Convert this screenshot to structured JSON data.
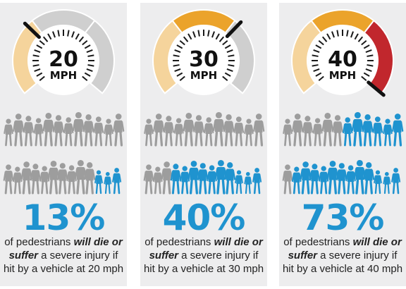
{
  "colors": {
    "panel_bg": "#ededee",
    "dial_tan": "#f5d49c",
    "dial_orange": "#eba32b",
    "dial_red": "#c1272d",
    "dial_grey": "#cfcfcf",
    "people_grey": "#9d9d9d",
    "people_blue": "#1f93cf",
    "percent_blue": "#1f93cf"
  },
  "panels": [
    {
      "speed": "20",
      "unit": "MPH",
      "active_zones": 1,
      "percent": "13%",
      "caption": {
        "pre": "of pedestrians ",
        "em": "will die or suffer",
        "post": " a severe injury if hit by a vehicle at 20 mph"
      },
      "crowd": {
        "total": 25,
        "affected": 3,
        "affected_rows": [
          0,
          3
        ]
      }
    },
    {
      "speed": "30",
      "unit": "MPH",
      "active_zones": 2,
      "percent": "40%",
      "caption": {
        "pre": "of pedestrians ",
        "em": "will die or suffer",
        "post": " a severe injury if hit by a vehicle at 30 mph"
      },
      "crowd": {
        "total": 25,
        "affected": 10,
        "affected_rows": [
          0,
          10
        ]
      }
    },
    {
      "speed": "40",
      "unit": "MPH",
      "active_zones": 3,
      "percent": "73%",
      "caption": {
        "pre": "of pedestrians ",
        "em": "will die or suffer",
        "post": " a severe injury if hit by a vehicle at 40 mph"
      },
      "crowd": {
        "total": 25,
        "affected": 18,
        "affected_rows": [
          6,
          12
        ]
      }
    }
  ]
}
